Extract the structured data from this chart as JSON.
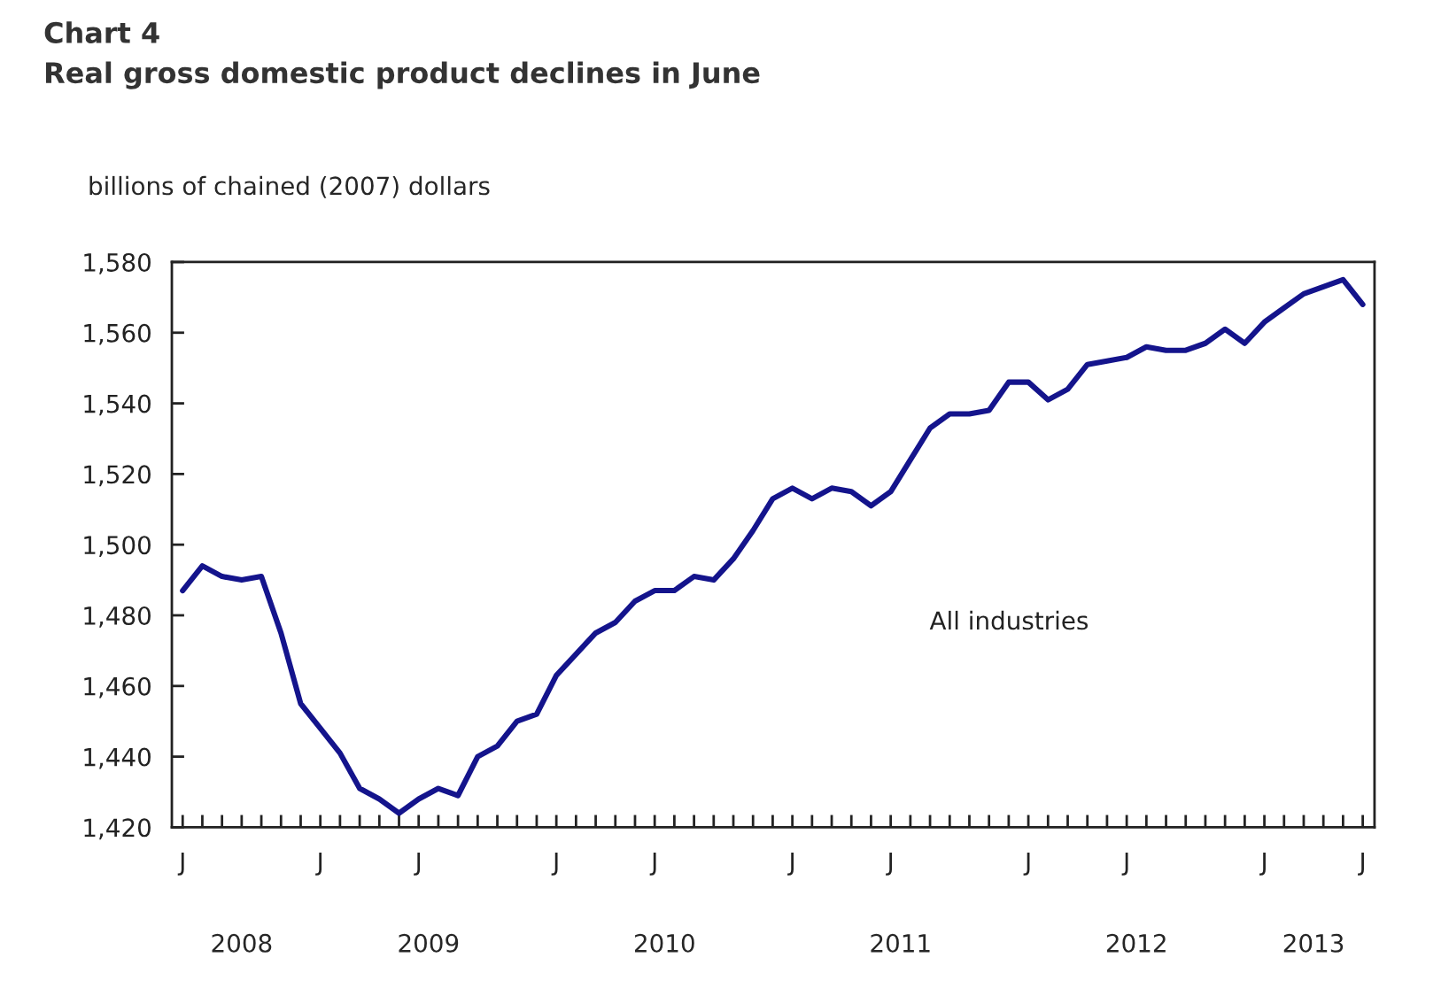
{
  "chart_data": {
    "type": "line",
    "title": "Chart 4",
    "subtitle": "Real gross domestic product declines in June",
    "ylabel": "billions of chained (2007) dollars",
    "categories": [
      "J",
      null,
      null,
      null,
      null,
      null,
      null,
      "J",
      null,
      null,
      null,
      null,
      "J",
      null,
      null,
      null,
      null,
      null,
      null,
      "J",
      null,
      null,
      null,
      null,
      "J",
      null,
      null,
      null,
      null,
      null,
      null,
      "J",
      null,
      null,
      null,
      null,
      "J",
      null,
      null,
      null,
      null,
      null,
      null,
      "J",
      null,
      null,
      null,
      null,
      "J",
      null,
      null,
      null,
      null,
      null,
      null,
      "J",
      null,
      null,
      null,
      null,
      "J"
    ],
    "series": [
      {
        "name": "All industries",
        "color": "#14148c",
        "values": [
          1487,
          1494,
          1491,
          1490,
          1491,
          1475,
          1455,
          1448,
          1441,
          1431,
          1428,
          1424,
          1428,
          1431,
          1429,
          1440,
          1443,
          1450,
          1452,
          1463,
          1469,
          1475,
          1478,
          1484,
          1487,
          1487,
          1491,
          1490,
          1496,
          1504,
          1513,
          1516,
          1513,
          1516,
          1515,
          1511,
          1515,
          1524,
          1533,
          1537,
          1537,
          1538,
          1546,
          1546,
          1541,
          1544,
          1551,
          1552,
          1553,
          1556,
          1555,
          1555,
          1557,
          1561,
          1557,
          1563,
          1567,
          1571,
          1573,
          1575,
          1568
        ]
      }
    ],
    "ylim": [
      1420,
      1580
    ],
    "yticks": [
      {
        "value": 1420,
        "label": "1,420"
      },
      {
        "value": 1440,
        "label": "1,440"
      },
      {
        "value": 1460,
        "label": "1,460"
      },
      {
        "value": 1480,
        "label": "1,480"
      },
      {
        "value": 1500,
        "label": "1,500"
      },
      {
        "value": 1520,
        "label": "1,520"
      },
      {
        "value": 1540,
        "label": "1,540"
      },
      {
        "value": 1560,
        "label": "1,560"
      },
      {
        "value": 1580,
        "label": "1,580"
      }
    ],
    "annotations": [
      "2008",
      "2009",
      "2010",
      "2011",
      "2012",
      "2013"
    ],
    "grid": false,
    "legend": false,
    "marker": "none",
    "line_style": "solid"
  }
}
